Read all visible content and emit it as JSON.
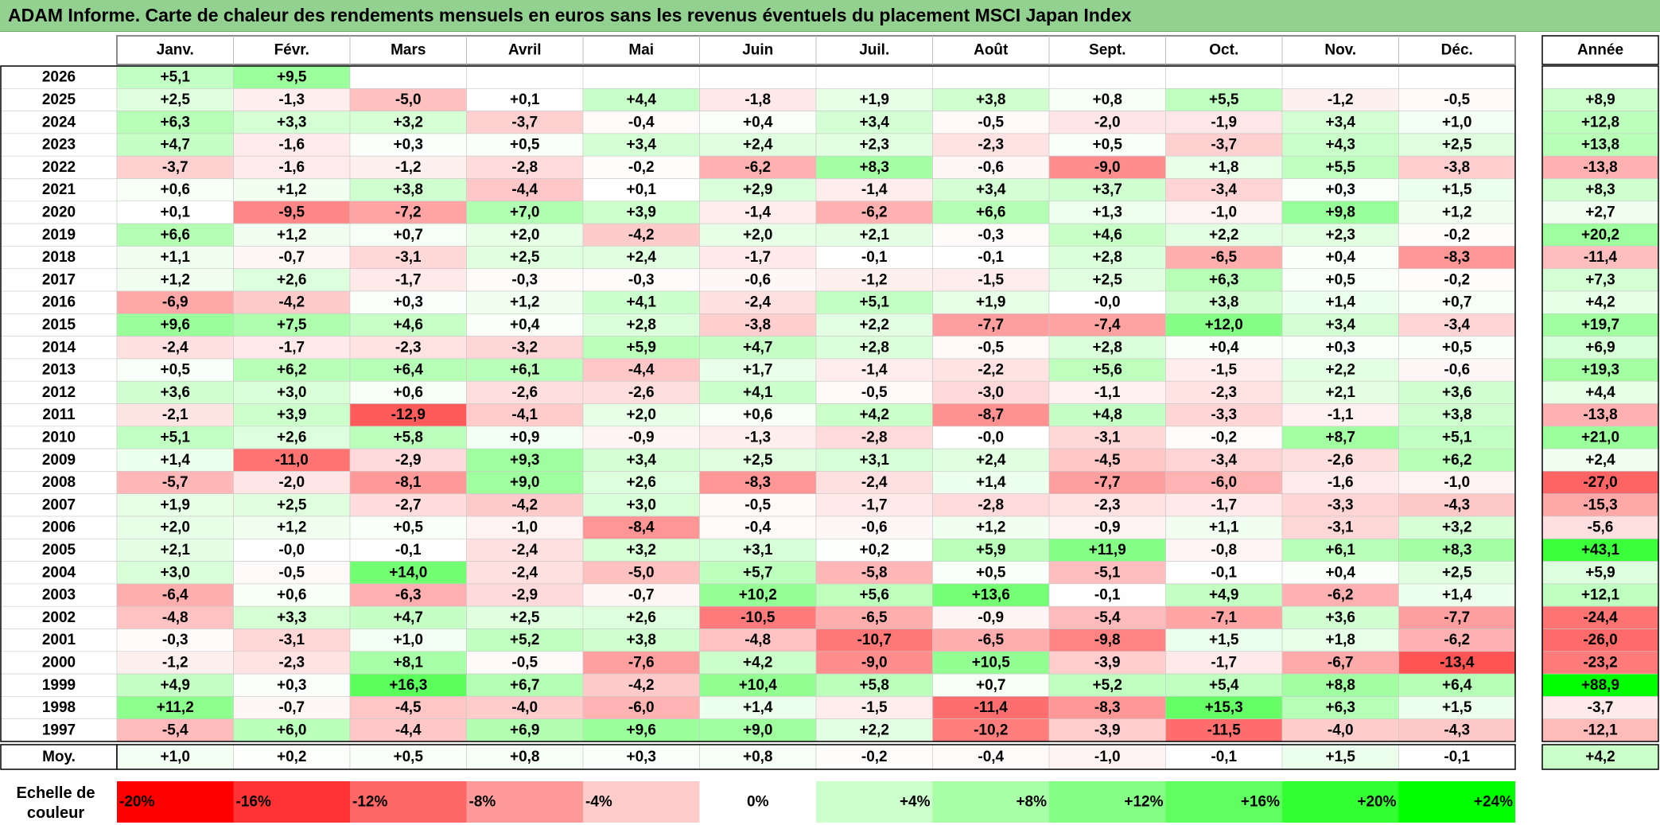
{
  "title": "ADAM Informe. Carte de chaleur des rendements mensuels en euros sans les revenus éventuels du placement MSCI Japan Index",
  "chart_data": {
    "type": "heatmap",
    "months": [
      "Janv.",
      "Févr.",
      "Mars",
      "Avril",
      "Mai",
      "Juin",
      "Juil.",
      "Août",
      "Sept.",
      "Oct.",
      "Nov.",
      "Déc."
    ],
    "year_header": "Année",
    "rows": [
      {
        "year": "2026",
        "values": [
          "+5,1",
          "+9,5",
          null,
          null,
          null,
          null,
          null,
          null,
          null,
          null,
          null,
          null
        ],
        "annual": null
      },
      {
        "year": "2025",
        "values": [
          "+2,5",
          "-1,3",
          "-5,0",
          "+0,1",
          "+4,4",
          "-1,8",
          "+1,9",
          "+3,8",
          "+0,8",
          "+5,5",
          "-1,2",
          "-0,5"
        ],
        "annual": "+8,9"
      },
      {
        "year": "2024",
        "values": [
          "+6,3",
          "+3,3",
          "+3,2",
          "-3,7",
          "-0,4",
          "+0,4",
          "+3,4",
          "-0,5",
          "-2,0",
          "-1,9",
          "+3,4",
          "+1,0"
        ],
        "annual": "+12,8"
      },
      {
        "year": "2023",
        "values": [
          "+4,7",
          "-1,6",
          "+0,3",
          "+0,5",
          "+3,4",
          "+2,4",
          "+2,3",
          "-2,3",
          "+0,5",
          "-3,7",
          "+4,3",
          "+2,5"
        ],
        "annual": "+13,8"
      },
      {
        "year": "2022",
        "values": [
          "-3,7",
          "-1,6",
          "-1,2",
          "-2,8",
          "-0,2",
          "-6,2",
          "+8,3",
          "-0,6",
          "-9,0",
          "+1,8",
          "+5,5",
          "-3,8"
        ],
        "annual": "-13,8"
      },
      {
        "year": "2021",
        "values": [
          "+0,6",
          "+1,2",
          "+3,8",
          "-4,4",
          "+0,1",
          "+2,9",
          "-1,4",
          "+3,4",
          "+3,7",
          "-3,4",
          "+0,3",
          "+1,5"
        ],
        "annual": "+8,3"
      },
      {
        "year": "2020",
        "values": [
          "+0,1",
          "-9,5",
          "-7,2",
          "+7,0",
          "+3,9",
          "-1,4",
          "-6,2",
          "+6,6",
          "+1,3",
          "-1,0",
          "+9,8",
          "+1,2"
        ],
        "annual": "+2,7"
      },
      {
        "year": "2019",
        "values": [
          "+6,6",
          "+1,2",
          "+0,7",
          "+2,0",
          "-4,2",
          "+2,0",
          "+2,1",
          "-0,3",
          "+4,6",
          "+2,2",
          "+2,3",
          "-0,2"
        ],
        "annual": "+20,2"
      },
      {
        "year": "2018",
        "values": [
          "+1,1",
          "-0,7",
          "-3,1",
          "+2,5",
          "+2,4",
          "-1,7",
          "-0,1",
          "-0,1",
          "+2,8",
          "-6,5",
          "+0,4",
          "-8,3"
        ],
        "annual": "-11,4"
      },
      {
        "year": "2017",
        "values": [
          "+1,2",
          "+2,6",
          "-1,7",
          "-0,3",
          "-0,3",
          "-0,6",
          "-1,2",
          "-1,5",
          "+2,5",
          "+6,3",
          "+0,5",
          "-0,2"
        ],
        "annual": "+7,3"
      },
      {
        "year": "2016",
        "values": [
          "-6,9",
          "-4,2",
          "+0,3",
          "+1,2",
          "+4,1",
          "-2,4",
          "+5,1",
          "+1,9",
          "-0,0",
          "+3,8",
          "+1,4",
          "+0,7"
        ],
        "annual": "+4,2"
      },
      {
        "year": "2015",
        "values": [
          "+9,6",
          "+7,5",
          "+4,6",
          "+0,4",
          "+2,8",
          "-3,8",
          "+2,2",
          "-7,7",
          "-7,4",
          "+12,0",
          "+3,4",
          "-3,4"
        ],
        "annual": "+19,7"
      },
      {
        "year": "2014",
        "values": [
          "-2,4",
          "-1,7",
          "-2,3",
          "-3,2",
          "+5,9",
          "+4,7",
          "+2,8",
          "-0,5",
          "+2,8",
          "+0,4",
          "+0,3",
          "+0,5"
        ],
        "annual": "+6,9"
      },
      {
        "year": "2013",
        "values": [
          "+0,5",
          "+6,2",
          "+6,4",
          "+6,1",
          "-4,4",
          "+1,7",
          "-1,4",
          "-2,2",
          "+5,6",
          "-1,5",
          "+2,2",
          "-0,6"
        ],
        "annual": "+19,3"
      },
      {
        "year": "2012",
        "values": [
          "+3,6",
          "+3,0",
          "+0,6",
          "-2,6",
          "-2,6",
          "+4,1",
          "-0,5",
          "-3,0",
          "-1,1",
          "-2,3",
          "+2,1",
          "+3,6"
        ],
        "annual": "+4,4"
      },
      {
        "year": "2011",
        "values": [
          "-2,1",
          "+3,9",
          "-12,9",
          "-4,1",
          "+2,0",
          "+0,6",
          "+4,2",
          "-8,7",
          "+4,8",
          "-3,3",
          "-1,1",
          "+3,8"
        ],
        "annual": "-13,8"
      },
      {
        "year": "2010",
        "values": [
          "+5,1",
          "+2,6",
          "+5,8",
          "+0,9",
          "-0,9",
          "-1,3",
          "-2,8",
          "-0,0",
          "-3,1",
          "-0,2",
          "+8,7",
          "+5,1"
        ],
        "annual": "+21,0"
      },
      {
        "year": "2009",
        "values": [
          "+1,4",
          "-11,0",
          "-2,9",
          "+9,3",
          "+3,4",
          "+2,5",
          "+3,1",
          "+2,4",
          "-4,5",
          "-3,4",
          "-2,6",
          "+6,2"
        ],
        "annual": "+2,4"
      },
      {
        "year": "2008",
        "values": [
          "-5,7",
          "-2,0",
          "-8,1",
          "+9,0",
          "+2,6",
          "-8,3",
          "-2,4",
          "+1,4",
          "-7,7",
          "-6,0",
          "-1,6",
          "-1,0"
        ],
        "annual": "-27,0"
      },
      {
        "year": "2007",
        "values": [
          "+1,9",
          "+2,5",
          "-2,7",
          "-4,2",
          "+3,0",
          "-0,5",
          "-1,7",
          "-2,8",
          "-2,3",
          "-1,7",
          "-3,3",
          "-4,3"
        ],
        "annual": "-15,3"
      },
      {
        "year": "2006",
        "values": [
          "+2,0",
          "+1,2",
          "+0,5",
          "-1,0",
          "-8,4",
          "-0,4",
          "-0,6",
          "+1,2",
          "-0,9",
          "+1,1",
          "-3,1",
          "+3,2"
        ],
        "annual": "-5,6"
      },
      {
        "year": "2005",
        "values": [
          "+2,1",
          "-0,0",
          "-0,1",
          "-2,4",
          "+3,2",
          "+3,1",
          "+0,2",
          "+5,9",
          "+11,9",
          "-0,8",
          "+6,1",
          "+8,3"
        ],
        "annual": "+43,1"
      },
      {
        "year": "2004",
        "values": [
          "+3,0",
          "-0,5",
          "+14,0",
          "-2,4",
          "-5,0",
          "+5,7",
          "-5,8",
          "+0,5",
          "-5,1",
          "-0,1",
          "+0,4",
          "+2,5"
        ],
        "annual": "+5,9"
      },
      {
        "year": "2003",
        "values": [
          "-6,4",
          "+0,6",
          "-6,3",
          "-2,9",
          "-0,7",
          "+10,2",
          "+5,6",
          "+13,6",
          "-0,1",
          "+4,9",
          "-6,2",
          "+1,4"
        ],
        "annual": "+12,1"
      },
      {
        "year": "2002",
        "values": [
          "-4,8",
          "+3,3",
          "+4,7",
          "+2,5",
          "+2,6",
          "-10,5",
          "-6,5",
          "-0,9",
          "-5,4",
          "-7,1",
          "+3,6",
          "-7,7"
        ],
        "annual": "-24,4"
      },
      {
        "year": "2001",
        "values": [
          "-0,3",
          "-3,1",
          "+1,0",
          "+5,2",
          "+3,8",
          "-4,8",
          "-10,7",
          "-6,5",
          "-9,8",
          "+1,5",
          "+1,8",
          "-6,2"
        ],
        "annual": "-26,0"
      },
      {
        "year": "2000",
        "values": [
          "-1,2",
          "-2,3",
          "+8,1",
          "-0,5",
          "-7,6",
          "+4,2",
          "-9,0",
          "+10,5",
          "-3,9",
          "-1,7",
          "-6,7",
          "-13,4"
        ],
        "annual": "-23,2"
      },
      {
        "year": "1999",
        "values": [
          "+4,9",
          "+0,3",
          "+16,3",
          "+6,7",
          "-4,2",
          "+10,4",
          "+5,8",
          "+0,7",
          "+5,2",
          "+5,4",
          "+8,8",
          "+6,4"
        ],
        "annual": "+88,9"
      },
      {
        "year": "1998",
        "values": [
          "+11,2",
          "-0,7",
          "-4,5",
          "-4,0",
          "-6,0",
          "+1,4",
          "-1,5",
          "-11,4",
          "-8,3",
          "+15,3",
          "+6,3",
          "+1,5"
        ],
        "annual": "-3,7"
      },
      {
        "year": "1997",
        "values": [
          "-5,4",
          "+6,0",
          "-4,4",
          "+6,9",
          "+9,6",
          "+9,0",
          "+2,2",
          "-10,2",
          "-3,9",
          "-11,5",
          "-4,0",
          "-4,3"
        ],
        "annual": "-12,1"
      }
    ],
    "average": {
      "label": "Moy.",
      "values": [
        "+1,0",
        "+0,2",
        "+0,5",
        "+0,8",
        "+0,3",
        "+0,8",
        "-0,2",
        "-0,4",
        "-1,0",
        "-0,1",
        "+1,5",
        "-0,1"
      ],
      "annual": "+4,2"
    },
    "scale": {
      "label_line1": "Echelle de",
      "label_line2": "couleur",
      "stops": [
        {
          "label": "-20%",
          "value": -20,
          "color": "#ff0000"
        },
        {
          "label": "-16%",
          "value": -16,
          "color": "#ff3333"
        },
        {
          "label": "-12%",
          "value": -12,
          "color": "#ff6666"
        },
        {
          "label": "-8%",
          "value": -8,
          "color": "#ff9a9a"
        },
        {
          "label": "-4%",
          "value": -4,
          "color": "#ffcccc"
        },
        {
          "label": "0%",
          "value": 0,
          "color": "#ffffff"
        },
        {
          "label": "+4%",
          "value": 4,
          "color": "#ccffcc"
        },
        {
          "label": "+8%",
          "value": 8,
          "color": "#a8ffa8"
        },
        {
          "label": "+12%",
          "value": 12,
          "color": "#85ff85"
        },
        {
          "label": "+16%",
          "value": 16,
          "color": "#5eff5e"
        },
        {
          "label": "+20%",
          "value": 20,
          "color": "#33ff33"
        },
        {
          "label": "+24%",
          "value": 24,
          "color": "#00ff00"
        }
      ]
    }
  }
}
